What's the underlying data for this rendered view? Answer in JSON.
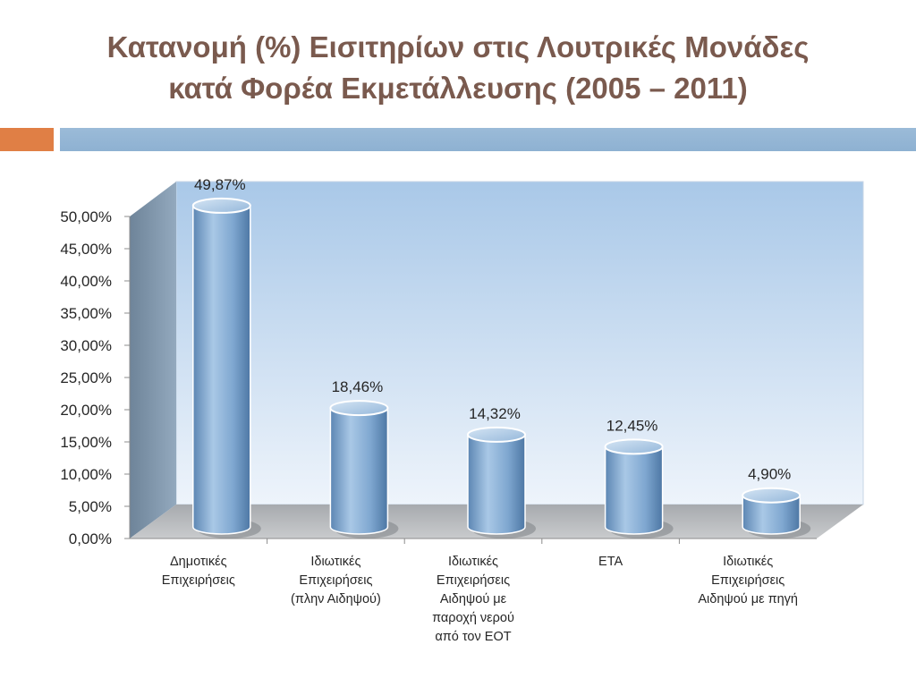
{
  "slide": {
    "title_line1": "Κατανομή (%) Εισιτηρίων στις Λουτρικές Μονάδες",
    "title_line2": "κατά Φορέα Εκμετάλλευσης (2005 – 2011)"
  },
  "colors": {
    "title": "#7a5a4e",
    "accent_orange": "#e07f45",
    "accent_blue": "#8eb1d2",
    "bar": "#7fa7d0",
    "wall_top": "#a9c8e8",
    "wall_bottom": "#eef4fb",
    "floor": "#b3b6ba"
  },
  "chart_data": {
    "type": "bar",
    "style": "3d-cylinder",
    "categories": [
      [
        "Δημοτικές",
        "Επιχειρήσεις"
      ],
      [
        "Ιδιωτικές",
        "Επιχειρήσεις",
        "(πλην Αιδηψού)"
      ],
      [
        "Ιδιωτικές",
        "Επιχειρήσεις",
        "Αιδηψού με",
        "παροχή νερού",
        "από τον ΕΟΤ"
      ],
      [
        "ΕΤΑ"
      ],
      [
        "Ιδιωτικές",
        "Επιχειρήσεις",
        "Αιδηψού με πηγή"
      ]
    ],
    "values": [
      49.87,
      18.46,
      14.32,
      12.45,
      4.9
    ],
    "data_labels": [
      "49,87%",
      "18,46%",
      "14,32%",
      "12,45%",
      "4,90%"
    ],
    "yticks": [
      "0,00%",
      "5,00%",
      "10,00%",
      "15,00%",
      "20,00%",
      "25,00%",
      "30,00%",
      "35,00%",
      "40,00%",
      "45,00%",
      "50,00%"
    ],
    "ylim": [
      0,
      50
    ],
    "grid": false,
    "legend": "none"
  }
}
